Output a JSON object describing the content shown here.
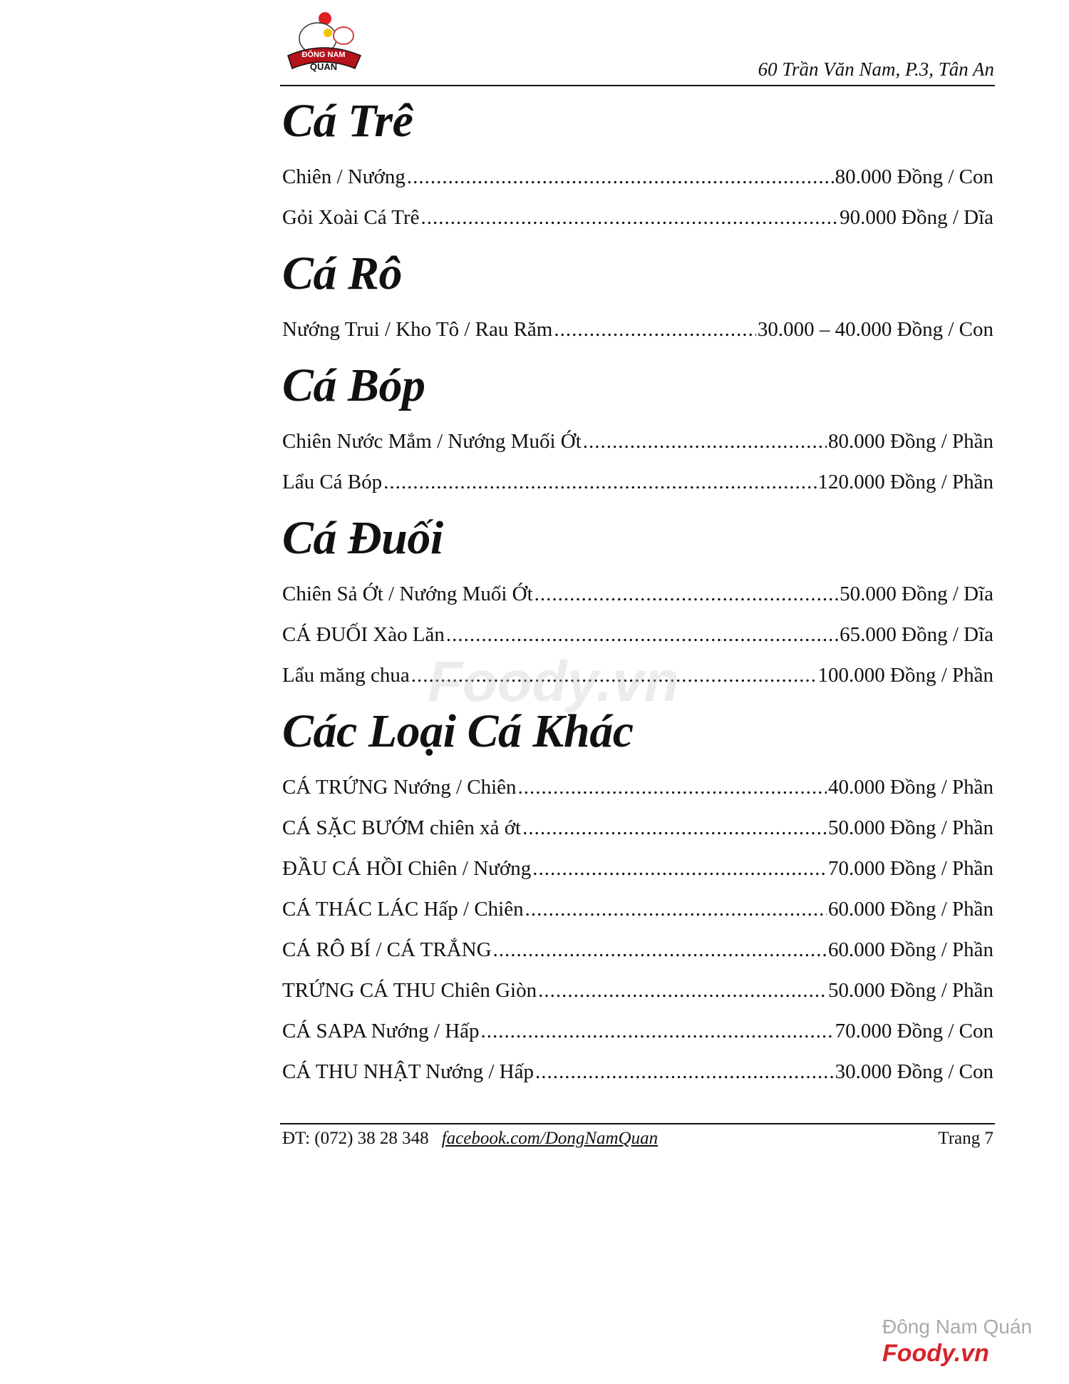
{
  "header": {
    "logo_text": "ĐÔNG NAM QUÁN",
    "address": "60 Trần Văn Nam, P.3, Tân An"
  },
  "sections": [
    {
      "title": "Cá Trê",
      "items": [
        {
          "name": "Chiên / Nướng",
          "price": "80.000 Đồng / Con"
        },
        {
          "name": "Gỏi Xoài Cá Trê",
          "price": "90.000 Đồng / Dĩa"
        }
      ]
    },
    {
      "title": "Cá Rô",
      "items": [
        {
          "name": "Nướng Trui / Kho Tô / Rau Răm",
          "price": "30.000 – 40.000 Đồng / Con"
        }
      ]
    },
    {
      "title": "Cá Bóp",
      "items": [
        {
          "name": "Chiên Nước Mắm / Nướng Muối Ớt",
          "price": "80.000 Đồng / Phần"
        },
        {
          "name": "Lẩu Cá Bóp",
          "price": "120.000 Đồng / Phần"
        }
      ]
    },
    {
      "title": "Cá Đuối",
      "items": [
        {
          "name": "Chiên Sả Ớt / Nướng Muối Ớt",
          "price": "50.000 Đồng / Dĩa"
        },
        {
          "name": "CÁ ĐUỐI Xào Lăn",
          "price": "65.000 Đồng / Dĩa"
        },
        {
          "name": "Lẩu măng chua",
          "price": "100.000 Đồng / Phần"
        }
      ]
    },
    {
      "title": "Các Loại Cá Khác",
      "items": [
        {
          "name": "CÁ TRỨNG Nướng / Chiên",
          "price": "40.000 Đồng / Phần"
        },
        {
          "name": "CÁ SẶC BƯỚM chiên xả ớt",
          "price": "50.000 Đồng / Phần"
        },
        {
          "name": "ĐẦU CÁ HỒI Chiên / Nướng",
          "price": "70.000 Đồng / Phần"
        },
        {
          "name": "CÁ THÁC LÁC Hấp / Chiên",
          "price": "60.000 Đồng / Phần"
        },
        {
          "name": "CÁ RÔ BÍ / CÁ TRẮNG",
          "price": "60.000 Đồng / Phần"
        },
        {
          "name": "TRỨNG CÁ THU Chiên Giòn",
          "price": "50.000 Đồng / Phần"
        },
        {
          "name": "CÁ SAPA Nướng / Hấp",
          "price": "70.000 Đồng / Con"
        },
        {
          "name": "CÁ THU NHẬT Nướng / Hấp",
          "price": "30.000 Đồng / Con"
        }
      ]
    }
  ],
  "footer": {
    "phone": "ĐT: (072) 38 28 348",
    "facebook": "facebook.com/DongNamQuan",
    "page": "Trang 7"
  },
  "watermark": {
    "restaurant": "Đông Nam Quán",
    "brand": "Foody.vn",
    "brand_color": "#d8232a"
  }
}
